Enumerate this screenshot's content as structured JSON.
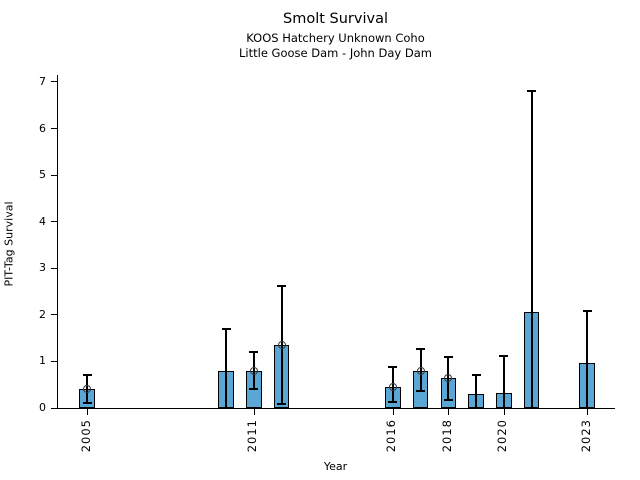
{
  "chart_data": {
    "type": "bar",
    "title": "Smolt Survival",
    "subtitles": [
      "KOOS Hatchery Unknown Coho",
      "Little Goose Dam - John Day Dam"
    ],
    "xlabel": "Year",
    "ylabel": "PIT-Tag Survival",
    "ylim": [
      0,
      7.15
    ],
    "yticks": [
      0,
      1,
      2,
      3,
      4,
      5,
      6,
      7
    ],
    "xlim": [
      2003.95,
      2024.0
    ],
    "xticks": [
      2005,
      2011,
      2016,
      2018,
      2020,
      2023
    ],
    "grid": false,
    "legend": null,
    "bar_width_years": 0.56,
    "colors": {
      "bar_fill": "#5AA7D6",
      "bar_edge": "#000000",
      "error": "#000000",
      "marker_edge": "#3a3a3a",
      "text": "#000000"
    },
    "points": [
      {
        "year": 2005,
        "value": 0.41,
        "ci_low": 0.11,
        "ci_high": 0.71,
        "marker": true
      },
      {
        "year": 2010,
        "value": 0.8,
        "ci_low": 0.0,
        "ci_high": 1.7,
        "marker": false
      },
      {
        "year": 2011,
        "value": 0.79,
        "ci_low": 0.41,
        "ci_high": 1.21,
        "marker": true
      },
      {
        "year": 2012,
        "value": 1.36,
        "ci_low": 0.09,
        "ci_high": 2.62,
        "marker": true
      },
      {
        "year": 2016,
        "value": 0.46,
        "ci_low": 0.12,
        "ci_high": 0.88,
        "marker": true
      },
      {
        "year": 2017,
        "value": 0.8,
        "ci_low": 0.36,
        "ci_high": 1.27,
        "marker": true
      },
      {
        "year": 2018,
        "value": 0.64,
        "ci_low": 0.18,
        "ci_high": 1.09,
        "marker": true
      },
      {
        "year": 2019,
        "value": 0.3,
        "ci_low": 0.0,
        "ci_high": 0.71,
        "marker": false
      },
      {
        "year": 2020,
        "value": 0.32,
        "ci_low": 0.0,
        "ci_high": 1.12,
        "marker": false
      },
      {
        "year": 2021,
        "value": 2.07,
        "ci_low": 0.0,
        "ci_high": 6.8,
        "marker": false
      },
      {
        "year": 2023,
        "value": 0.97,
        "ci_low": 0.0,
        "ci_high": 2.09,
        "marker": false
      }
    ]
  }
}
